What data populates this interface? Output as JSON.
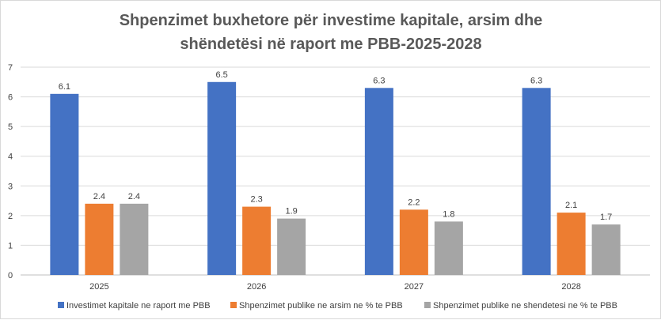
{
  "chart_data": {
    "type": "bar",
    "title_lines": [
      "Shpenzimet buxhetore për investime kapitale, arsim dhe",
      "shëndetësi në raport me PBB-2025-2028"
    ],
    "categories": [
      "2025",
      "2026",
      "2027",
      "2028"
    ],
    "series": [
      {
        "name": "Investimet kapitale ne raport me PBB",
        "color": "#4472c4",
        "values": [
          6.1,
          6.5,
          6.3,
          6.3
        ]
      },
      {
        "name": "Shpenzimet publike ne arsim ne % te PBB",
        "color": "#ed7d31",
        "values": [
          2.4,
          2.3,
          2.2,
          2.1
        ]
      },
      {
        "name": "Shpenzimet publike ne shendetesi ne % te PBB",
        "color": "#a5a5a5",
        "values": [
          2.4,
          1.9,
          1.8,
          1.7
        ]
      }
    ],
    "ylim": [
      0,
      7
    ],
    "yticks": [
      0,
      1,
      2,
      3,
      4,
      5,
      6,
      7
    ],
    "grid": true,
    "legend": "bottom",
    "xlabel": "",
    "ylabel": ""
  }
}
